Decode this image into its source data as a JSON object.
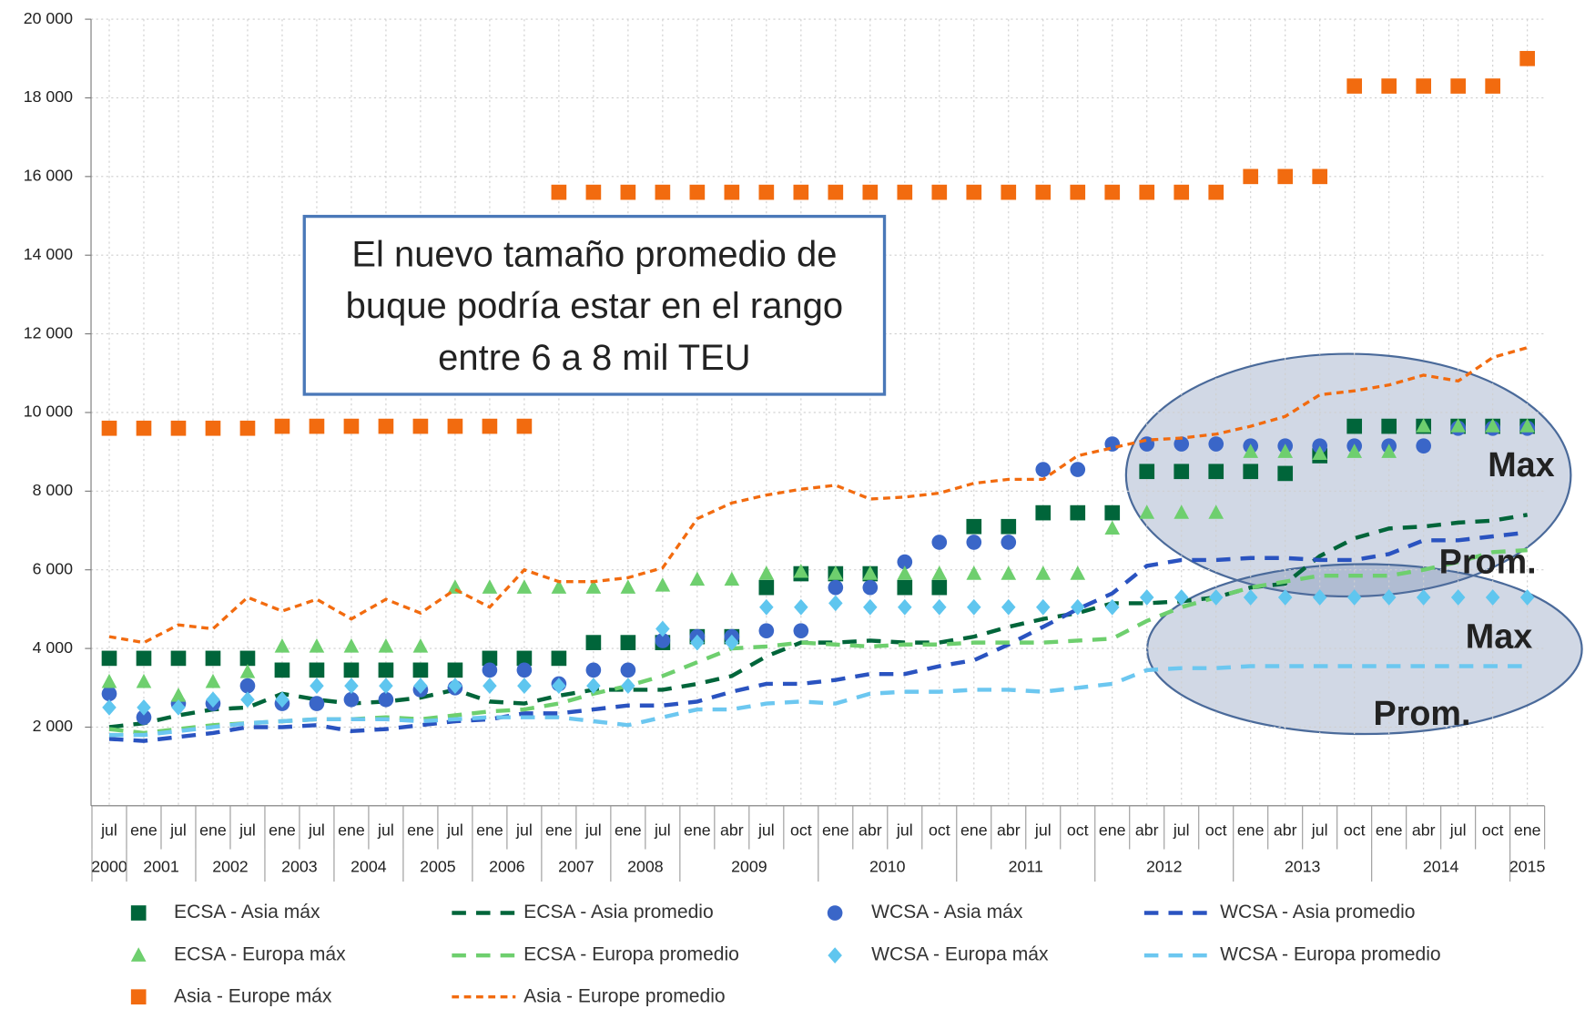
{
  "chart_data": {
    "type": "line",
    "categories": [
      "jul",
      "ene",
      "jul",
      "ene",
      "jul",
      "ene",
      "jul",
      "ene",
      "jul",
      "ene",
      "jul",
      "ene",
      "jul",
      "ene",
      "jul",
      "ene",
      "jul",
      "ene",
      "abr",
      "jul",
      "oct",
      "ene",
      "abr",
      "jul",
      "oct",
      "ene",
      "abr",
      "jul",
      "oct",
      "ene",
      "abr",
      "jul",
      "oct",
      "ene",
      "abr",
      "jul",
      "oct",
      "ene",
      "abr",
      "jul",
      "oct",
      "ene"
    ],
    "x_groups": [
      {
        "label": "2000",
        "count": 1
      },
      {
        "label": "2001",
        "count": 2
      },
      {
        "label": "2002",
        "count": 2
      },
      {
        "label": "2003",
        "count": 2
      },
      {
        "label": "2004",
        "count": 2
      },
      {
        "label": "2005",
        "count": 2
      },
      {
        "label": "2006",
        "count": 2
      },
      {
        "label": "2007",
        "count": 2
      },
      {
        "label": "2008",
        "count": 2
      },
      {
        "label": "2009",
        "count": 4
      },
      {
        "label": "2010",
        "count": 4
      },
      {
        "label": "2011",
        "count": 4
      },
      {
        "label": "2012",
        "count": 4
      },
      {
        "label": "2013",
        "count": 4
      },
      {
        "label": "2014",
        "count": 4
      },
      {
        "label": "2015",
        "count": 1
      }
    ],
    "ylim": [
      0,
      20000
    ],
    "yticks": [
      {
        "value": 2000,
        "label": "2 000"
      },
      {
        "value": 4000,
        "label": "4 000"
      },
      {
        "value": 6000,
        "label": "6 000"
      },
      {
        "value": 8000,
        "label": "8 000"
      },
      {
        "value": 10000,
        "label": "10 000"
      },
      {
        "value": 12000,
        "label": "12 000"
      },
      {
        "value": 14000,
        "label": "14 000"
      },
      {
        "value": 16000,
        "label": "16 000"
      },
      {
        "value": 18000,
        "label": "18 000"
      },
      {
        "value": 20000,
        "label": "20 000"
      }
    ],
    "grid": true,
    "series": [
      {
        "name": "ECSA - Asia máx",
        "color": "#00653a",
        "marker": "square",
        "values": [
          3750,
          3750,
          3750,
          3750,
          3750,
          3450,
          3450,
          3450,
          3450,
          3450,
          3450,
          3750,
          3750,
          3750,
          4150,
          4150,
          4150,
          4300,
          4300,
          5550,
          5900,
          5900,
          5900,
          5550,
          5550,
          7100,
          7100,
          7450,
          7450,
          7450,
          8500,
          8500,
          8500,
          8500,
          8450,
          8900,
          9650,
          9650,
          9650,
          9650,
          9650,
          9650
        ]
      },
      {
        "name": "ECSA - Asia promedio",
        "color": "#00653a",
        "marker": "dash",
        "values": [
          2000,
          2100,
          2300,
          2450,
          2500,
          2850,
          2700,
          2600,
          2650,
          2750,
          2950,
          2650,
          2600,
          2800,
          2950,
          2950,
          2950,
          3100,
          3300,
          3800,
          4150,
          4150,
          4200,
          4150,
          4150,
          4300,
          4550,
          4750,
          4900,
          5150,
          5150,
          5200,
          5300,
          5550,
          5650,
          6350,
          6800,
          7050,
          7100,
          7200,
          7250,
          7400
        ]
      },
      {
        "name": "WCSA - Asia máx",
        "color": "#3a66c8",
        "marker": "circle",
        "values": [
          2850,
          2250,
          2600,
          2600,
          3050,
          2600,
          2600,
          2700,
          2700,
          2950,
          3000,
          3450,
          3450,
          3100,
          3450,
          3450,
          4200,
          4300,
          4300,
          4450,
          4450,
          5550,
          5550,
          6200,
          6700,
          6700,
          6700,
          8550,
          8550,
          9200,
          9200,
          9200,
          9200,
          9150,
          9150,
          9150,
          9150,
          9150,
          9150,
          9600,
          9600,
          9600
        ]
      },
      {
        "name": "WCSA - Asia promedio",
        "color": "#2a53c0",
        "marker": "dash",
        "values": [
          1700,
          1650,
          1750,
          1850,
          2000,
          2000,
          2050,
          1900,
          1950,
          2050,
          2150,
          2200,
          2350,
          2350,
          2450,
          2550,
          2550,
          2650,
          2900,
          3100,
          3100,
          3200,
          3350,
          3350,
          3550,
          3700,
          4100,
          4550,
          5000,
          5400,
          6100,
          6250,
          6250,
          6300,
          6300,
          6250,
          6250,
          6400,
          6750,
          6750,
          6850,
          6950
        ]
      },
      {
        "name": "ECSA - Europa máx",
        "color": "#6ecf6e",
        "marker": "triangle",
        "values": [
          3150,
          3150,
          2800,
          3150,
          3400,
          4050,
          4050,
          4050,
          4050,
          4050,
          5550,
          5550,
          5550,
          5550,
          5550,
          5550,
          5600,
          5750,
          5750,
          5900,
          5950,
          5900,
          5900,
          5900,
          5900,
          5900,
          5900,
          5900,
          5900,
          7050,
          7450,
          7450,
          7450,
          9000,
          9000,
          8950,
          9000,
          9000,
          9650,
          9650,
          9650,
          9650
        ]
      },
      {
        "name": "ECSA - Europa promedio",
        "color": "#6ecf6e",
        "marker": "dash",
        "values": [
          1950,
          1850,
          1950,
          2050,
          2100,
          2150,
          2200,
          2200,
          2250,
          2200,
          2300,
          2400,
          2450,
          2600,
          2850,
          3050,
          3300,
          3650,
          4000,
          4050,
          4150,
          4100,
          4050,
          4100,
          4100,
          4150,
          4150,
          4150,
          4200,
          4250,
          4700,
          5050,
          5300,
          5550,
          5700,
          5850,
          5850,
          5850,
          6000,
          6200,
          6450,
          6500
        ]
      },
      {
        "name": "WCSA - Europa máx",
        "color": "#5fc6ef",
        "marker": "diamond",
        "values": [
          2500,
          2500,
          2500,
          2700,
          2700,
          2700,
          3050,
          3050,
          3050,
          3050,
          3050,
          3050,
          3050,
          3050,
          3050,
          3050,
          4500,
          4150,
          4150,
          5050,
          5050,
          5150,
          5050,
          5050,
          5050,
          5050,
          5050,
          5050,
          5050,
          5050,
          5300,
          5300,
          5300,
          5300,
          5300,
          5300,
          5300,
          5300,
          5300,
          5300,
          5300,
          5300
        ]
      },
      {
        "name": "WCSA - Europa promedio",
        "color": "#6cc7f0",
        "marker": "dash",
        "values": [
          1800,
          1800,
          1900,
          2000,
          2100,
          2150,
          2200,
          2200,
          2200,
          2150,
          2200,
          2250,
          2250,
          2250,
          2150,
          2050,
          2250,
          2450,
          2450,
          2600,
          2650,
          2600,
          2850,
          2900,
          2900,
          2950,
          2950,
          2900,
          3000,
          3100,
          3450,
          3500,
          3500,
          3550,
          3550,
          3550,
          3550,
          3550,
          3550,
          3550,
          3550,
          3550
        ]
      },
      {
        "name": "Asia - Europe máx",
        "color": "#f26b0f",
        "marker": "square",
        "values": [
          9600,
          9600,
          9600,
          9600,
          9600,
          9650,
          9650,
          9650,
          9650,
          9650,
          9650,
          9650,
          9650,
          15600,
          15600,
          15600,
          15600,
          15600,
          15600,
          15600,
          15600,
          15600,
          15600,
          15600,
          15600,
          15600,
          15600,
          15600,
          15600,
          15600,
          15600,
          15600,
          15600,
          16000,
          16000,
          16000,
          18300,
          18300,
          18300,
          18300,
          18300,
          19000
        ]
      },
      {
        "name": "Asia - Europe promedio",
        "color": "#f26b0f",
        "marker": "dot",
        "values": [
          4300,
          4150,
          4600,
          4500,
          5300,
          4950,
          5250,
          4750,
          5250,
          4900,
          5500,
          5050,
          6000,
          5700,
          5700,
          5800,
          6050,
          7300,
          7700,
          7900,
          8050,
          8150,
          7800,
          7850,
          7950,
          8200,
          8300,
          8300,
          8900,
          9100,
          9300,
          9350,
          9450,
          9650,
          9900,
          10450,
          10550,
          10700,
          10950,
          10800,
          11400,
          11650
        ]
      }
    ],
    "callout": [
      "El nuevo tamaño promedio de",
      "buque podría estar en el rango",
      "entre 6 a 8 mil TEU"
    ],
    "annotations": [
      "Max",
      "Prom.",
      "Max",
      "Prom."
    ]
  }
}
